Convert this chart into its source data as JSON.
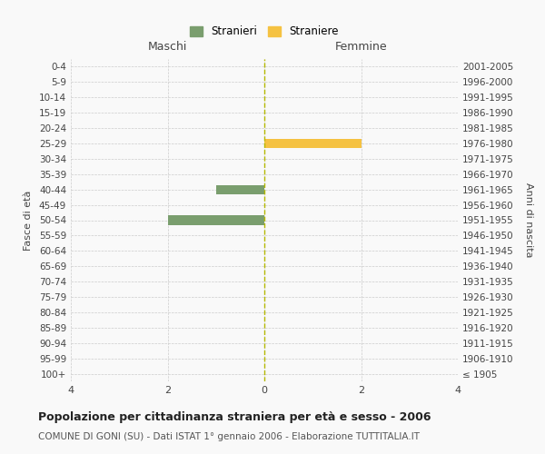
{
  "age_groups": [
    "0-4",
    "5-9",
    "10-14",
    "15-19",
    "20-24",
    "25-29",
    "30-34",
    "35-39",
    "40-44",
    "45-49",
    "50-54",
    "55-59",
    "60-64",
    "65-69",
    "70-74",
    "75-79",
    "80-84",
    "85-89",
    "90-94",
    "95-99",
    "100+"
  ],
  "birth_years": [
    "2001-2005",
    "1996-2000",
    "1991-1995",
    "1986-1990",
    "1981-1985",
    "1976-1980",
    "1971-1975",
    "1966-1970",
    "1961-1965",
    "1956-1960",
    "1951-1955",
    "1946-1950",
    "1941-1945",
    "1936-1940",
    "1931-1935",
    "1926-1930",
    "1921-1925",
    "1916-1920",
    "1911-1915",
    "1906-1910",
    "≤ 1905"
  ],
  "males": [
    0,
    0,
    0,
    0,
    0,
    0,
    0,
    0,
    1,
    0,
    2,
    0,
    0,
    0,
    0,
    0,
    0,
    0,
    0,
    0,
    0
  ],
  "females": [
    0,
    0,
    0,
    0,
    0,
    2,
    0,
    0,
    0,
    0,
    0,
    0,
    0,
    0,
    0,
    0,
    0,
    0,
    0,
    0,
    0
  ],
  "male_color": "#7a9e6e",
  "female_color": "#f5c242",
  "xlim": 4,
  "xlabel_left": "Maschi",
  "xlabel_right": "Femmine",
  "ylabel_left": "Fasce di età",
  "ylabel_right": "Anni di nascita",
  "title_main": "Popolazione per cittadinanza straniera per età e sesso - 2006",
  "subtitle": "COMUNE DI GONI (SU) - Dati ISTAT 1° gennaio 2006 - Elaborazione TUTTITALIA.IT",
  "legend_stranieri": "Stranieri",
  "legend_straniere": "Straniere",
  "bg_color": "#f9f9f9",
  "grid_color": "#cccccc",
  "axis_center_color": "#b5b800"
}
